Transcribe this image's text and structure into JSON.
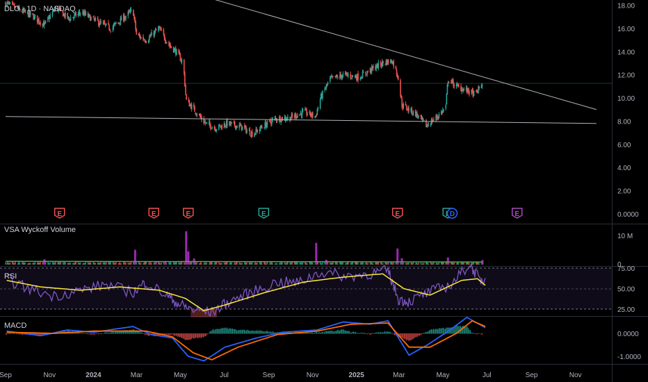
{
  "symbol_header": "DLO · 1D · NASDAQ",
  "panes": {
    "volume_title": "VSA Wyckoff Volume",
    "rsi_title": "RSI",
    "macd_title": "MACD"
  },
  "colors": {
    "background": "#000000",
    "up": "#26a69a",
    "down": "#ef5350",
    "climax": "#9c27b0",
    "volume_ma": "#4caf50",
    "rsi_line": "#7e57c2",
    "rsi_ma": "#ffeb3b",
    "macd_line": "#2962ff",
    "signal_line": "#ff6d00",
    "trendline": "#b2b5be",
    "earnings_red": "#ef5350",
    "earnings_green": "#26a69a",
    "earnings_purple": "#ab47bc",
    "dividend_blue": "#2962ff",
    "axis_text": "#b2b5be"
  },
  "chart_data": [
    {
      "type": "candlestick",
      "title": "DLO · 1D · NASDAQ",
      "ylim": [
        0,
        18.5
      ],
      "y_ticks": [
        "18.00",
        "16.00",
        "14.00",
        "12.00",
        "10.00",
        "8.00",
        "6.00",
        "4.00",
        "2.00",
        "0.0000"
      ],
      "x_ticks": [
        "Sep",
        "Nov",
        "2024",
        "Mar",
        "May",
        "Jul",
        "Sep",
        "Nov",
        "2025",
        "Mar",
        "May",
        "Jul",
        "Sep",
        "Nov"
      ],
      "price_path": [
        [
          "2023-09-01",
          18.2
        ],
        [
          "2023-09-20",
          17.6
        ],
        [
          "2023-10-10",
          17.0
        ],
        [
          "2023-10-25",
          16.3
        ],
        [
          "2023-11-10",
          17.8
        ],
        [
          "2023-11-28",
          16.8
        ],
        [
          "2023-12-15",
          17.4
        ],
        [
          "2024-01-05",
          16.6
        ],
        [
          "2024-01-25",
          16.0
        ],
        [
          "2024-02-10",
          16.8
        ],
        [
          "2024-02-25",
          17.6
        ],
        [
          "2024-03-01",
          15.4
        ],
        [
          "2024-03-15",
          15.0
        ],
        [
          "2024-04-01",
          16.0
        ],
        [
          "2024-04-15",
          14.6
        ],
        [
          "2024-04-25",
          14.0
        ],
        [
          "2024-05-05",
          13.0
        ],
        [
          "2024-05-09",
          9.8
        ],
        [
          "2024-05-20",
          9.0
        ],
        [
          "2024-06-05",
          7.8
        ],
        [
          "2024-06-20",
          7.4
        ],
        [
          "2024-07-05",
          7.8
        ],
        [
          "2024-07-25",
          7.5
        ],
        [
          "2024-08-10",
          6.9
        ],
        [
          "2024-08-25",
          7.6
        ],
        [
          "2024-09-10",
          8.2
        ],
        [
          "2024-10-01",
          8.3
        ],
        [
          "2024-10-20",
          8.8
        ],
        [
          "2024-11-05",
          8.4
        ],
        [
          "2024-11-12",
          10.0
        ],
        [
          "2024-11-25",
          11.6
        ],
        [
          "2024-12-15",
          12.0
        ],
        [
          "2025-01-05",
          11.8
        ],
        [
          "2025-01-25",
          12.6
        ],
        [
          "2025-02-10",
          13.1
        ],
        [
          "2025-02-20",
          13.2
        ],
        [
          "2025-02-28",
          11.8
        ],
        [
          "2025-03-05",
          9.4
        ],
        [
          "2025-03-25",
          8.6
        ],
        [
          "2025-04-08",
          7.6
        ],
        [
          "2025-04-25",
          8.5
        ],
        [
          "2025-05-05",
          9.2
        ],
        [
          "2025-05-08",
          11.6
        ],
        [
          "2025-05-20",
          11.0
        ],
        [
          "2025-06-05",
          10.6
        ],
        [
          "2025-06-15",
          10.3
        ],
        [
          "2025-06-25",
          11.3
        ]
      ],
      "trendlines": [
        {
          "from": [
            "2024-05-20",
            19.0
          ],
          "to": [
            "2025-11-30",
            9.0
          ]
        },
        {
          "from": [
            "2023-09-01",
            8.4
          ],
          "to": [
            "2025-11-30",
            7.8
          ]
        }
      ],
      "events": [
        {
          "date": "2023-11-15",
          "label": "E",
          "color": "red"
        },
        {
          "date": "2024-03-25",
          "label": "E",
          "color": "red"
        },
        {
          "date": "2024-05-12",
          "label": "E",
          "color": "red"
        },
        {
          "date": "2024-08-25",
          "label": "E",
          "color": "green"
        },
        {
          "date": "2025-02-27",
          "label": "E",
          "color": "red"
        },
        {
          "date": "2025-05-08",
          "label": "E",
          "color": "green"
        },
        {
          "date": "2025-05-14",
          "label": "D",
          "color": "blue"
        },
        {
          "date": "2025-08-12",
          "label": "E",
          "color": "purple"
        }
      ]
    },
    {
      "type": "bar",
      "title": "VSA Wyckoff Volume",
      "y_ticks": [
        "10 M",
        "0"
      ],
      "ylim": [
        0,
        14000000
      ],
      "climax_bars": [
        [
          "2023-10-25",
          2100000
        ],
        [
          "2024-02-28",
          5800000
        ],
        [
          "2024-03-28",
          1300000
        ],
        [
          "2024-04-10",
          1100000
        ],
        [
          "2024-05-09",
          13000000
        ],
        [
          "2024-05-12",
          5200000
        ],
        [
          "2024-05-20",
          2400000
        ],
        [
          "2024-11-06",
          8500000
        ],
        [
          "2024-11-20",
          1900000
        ],
        [
          "2025-02-14",
          1200000
        ],
        [
          "2025-02-27",
          6300000
        ],
        [
          "2025-03-05",
          2500000
        ],
        [
          "2025-05-08",
          2800000
        ],
        [
          "2025-06-25",
          1800000
        ]
      ],
      "volume_ma_level": 1300000
    },
    {
      "type": "line",
      "title": "RSI",
      "ylim": [
        15,
        85
      ],
      "y_ticks": [
        "75.00",
        "50.00",
        "25.00"
      ],
      "series": [
        {
          "values": [
            [
              2023.67,
              62
            ],
            [
              2023.75,
              50
            ],
            [
              2023.85,
              41
            ],
            [
              2023.95,
              48
            ],
            [
              2024.05,
              55
            ],
            [
              2024.15,
              45
            ],
            [
              2024.2,
              58
            ],
            [
              2024.28,
              41
            ],
            [
              2024.33,
              30
            ],
            [
              2024.38,
              24
            ],
            [
              2024.45,
              21
            ],
            [
              2024.52,
              35
            ],
            [
              2024.6,
              45
            ],
            [
              2024.7,
              58
            ],
            [
              2024.78,
              57
            ],
            [
              2024.86,
              70
            ],
            [
              2024.96,
              65
            ],
            [
              2025.05,
              68
            ],
            [
              2025.12,
              72
            ],
            [
              2025.16,
              37
            ],
            [
              2025.2,
              34
            ],
            [
              2025.28,
              46
            ],
            [
              2025.36,
              55
            ],
            [
              2025.43,
              80
            ],
            [
              2025.47,
              60
            ],
            [
              2025.49,
              63
            ]
          ]
        },
        {
          "values": [
            [
              2023.67,
              60
            ],
            [
              2023.8,
              52
            ],
            [
              2023.95,
              48
            ],
            [
              2024.1,
              52
            ],
            [
              2024.25,
              48
            ],
            [
              2024.35,
              38
            ],
            [
              2024.42,
              23
            ],
            [
              2024.5,
              30
            ],
            [
              2024.65,
              45
            ],
            [
              2024.8,
              58
            ],
            [
              2024.95,
              64
            ],
            [
              2025.1,
              68
            ],
            [
              2025.18,
              50
            ],
            [
              2025.28,
              42
            ],
            [
              2025.4,
              60
            ],
            [
              2025.46,
              62
            ],
            [
              2025.49,
              54
            ]
          ]
        }
      ]
    },
    {
      "type": "line",
      "title": "MACD",
      "ylim": [
        -1.35,
        0.9
      ],
      "y_ticks": [
        "0.0000",
        "-1.0000"
      ],
      "series": [
        {
          "values": [
            [
              2023.67,
              0.1
            ],
            [
              2023.8,
              -0.1
            ],
            [
              2023.9,
              0.15
            ],
            [
              2024.0,
              0.05
            ],
            [
              2024.15,
              0.3
            ],
            [
              2024.22,
              -0.05
            ],
            [
              2024.3,
              -0.2
            ],
            [
              2024.36,
              -1.0
            ],
            [
              2024.42,
              -1.2
            ],
            [
              2024.5,
              -0.6
            ],
            [
              2024.62,
              -0.2
            ],
            [
              2024.72,
              0.05
            ],
            [
              2024.85,
              0.15
            ],
            [
              2024.95,
              0.5
            ],
            [
              2025.05,
              0.4
            ],
            [
              2025.12,
              0.55
            ],
            [
              2025.16,
              -0.2
            ],
            [
              2025.2,
              -0.95
            ],
            [
              2025.27,
              -0.5
            ],
            [
              2025.35,
              0.1
            ],
            [
              2025.42,
              0.7
            ],
            [
              2025.49,
              0.25
            ]
          ]
        },
        {
          "values": [
            [
              2023.67,
              0.05
            ],
            [
              2023.85,
              0.0
            ],
            [
              2024.0,
              0.1
            ],
            [
              2024.2,
              0.1
            ],
            [
              2024.3,
              -0.15
            ],
            [
              2024.38,
              -0.85
            ],
            [
              2024.45,
              -1.15
            ],
            [
              2024.55,
              -0.6
            ],
            [
              2024.7,
              -0.05
            ],
            [
              2024.85,
              0.1
            ],
            [
              2024.98,
              0.4
            ],
            [
              2025.12,
              0.45
            ],
            [
              2025.2,
              -0.6
            ],
            [
              2025.28,
              -0.6
            ],
            [
              2025.38,
              0.0
            ],
            [
              2025.44,
              0.55
            ],
            [
              2025.49,
              0.3
            ]
          ]
        }
      ]
    }
  ]
}
